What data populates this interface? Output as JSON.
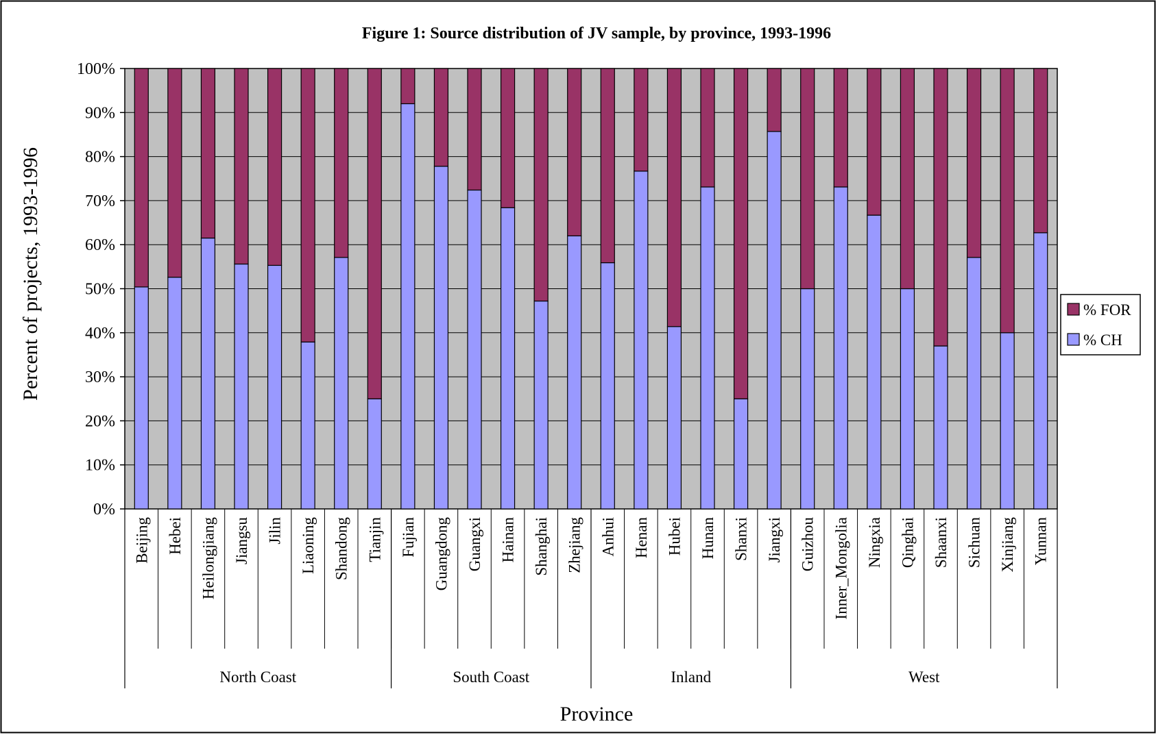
{
  "chart_data": {
    "type": "bar",
    "stacked": true,
    "title": "Figure 1: Source distribution of JV sample, by province, 1993-1996",
    "xlabel": "Province",
    "ylabel": "Percent of projects, 1993-1996",
    "ylim": [
      0,
      100
    ],
    "yticks": [
      "0%",
      "10%",
      "20%",
      "30%",
      "40%",
      "50%",
      "60%",
      "70%",
      "80%",
      "90%",
      "100%"
    ],
    "grid": true,
    "legend_position": "right",
    "categories": [
      "Beijing",
      "Hebei",
      "Heilongjiang",
      "Jiangsu",
      "Jilin",
      "Liaoning",
      "Shandong",
      "Tianjin",
      "Fujian",
      "Guangdong",
      "Guangxi",
      "Hainan",
      "Shanghai",
      "Zhejiang",
      "Anhui",
      "Henan",
      "Hubei",
      "Hunan",
      "Shanxi",
      "Jiangxi",
      "Guizhou",
      "Inner_Mongolia",
      "Ningxia",
      "Qinghai",
      "Shaanxi",
      "Sichuan",
      "Xinjiang",
      "Yunnan"
    ],
    "groups": [
      {
        "name": "North Coast",
        "count": 8
      },
      {
        "name": "South Coast",
        "count": 6
      },
      {
        "name": "Inland",
        "count": 6
      },
      {
        "name": "West",
        "count": 8
      }
    ],
    "series": [
      {
        "name": "% CH",
        "color": "#9999ff",
        "values": [
          50.4,
          52.6,
          61.5,
          55.6,
          55.3,
          37.9,
          57.1,
          25.0,
          92.0,
          77.8,
          72.4,
          68.4,
          47.2,
          62.0,
          55.9,
          76.7,
          41.4,
          73.1,
          25.0,
          85.7,
          50.0,
          73.1,
          66.7,
          50.0,
          37.0,
          57.1,
          40.0,
          62.7
        ]
      },
      {
        "name": "% FOR",
        "color": "#993366",
        "values": [
          49.6,
          47.4,
          38.5,
          44.4,
          44.7,
          62.1,
          42.9,
          75.0,
          8.0,
          22.2,
          27.6,
          31.6,
          52.8,
          38.0,
          44.1,
          23.3,
          58.6,
          26.9,
          75.0,
          14.3,
          50.0,
          26.9,
          33.3,
          50.0,
          63.0,
          42.9,
          60.0,
          37.3
        ]
      }
    ],
    "legend": [
      "% FOR",
      "% CH"
    ],
    "colors": {
      "plot_background": "#c0c0c0",
      "gridline": "#000000"
    }
  }
}
